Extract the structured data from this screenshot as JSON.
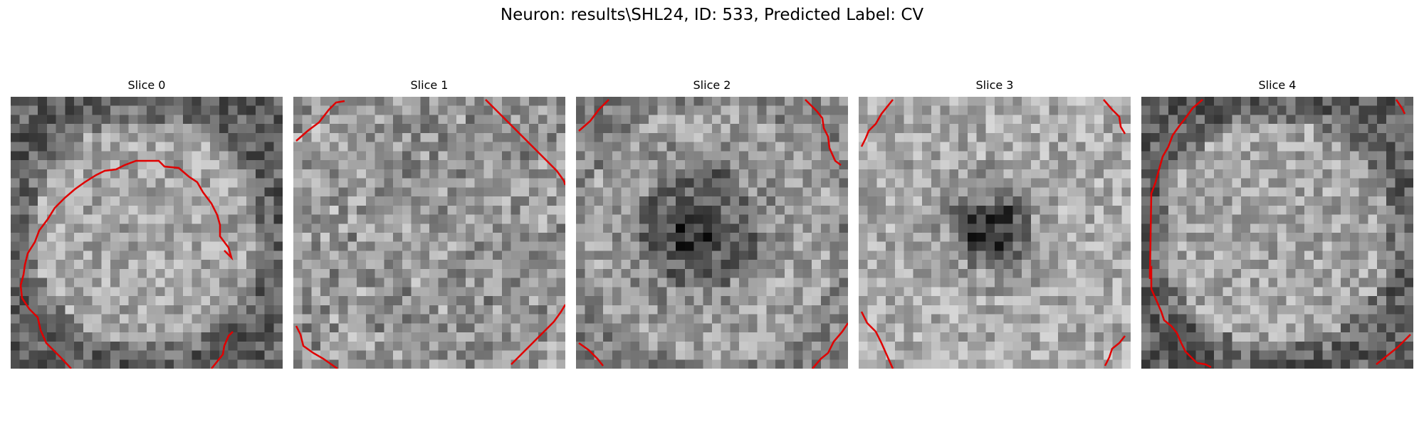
{
  "figure": {
    "title": "Neuron: results\\SHL24, ID: 533, Predicted Label: CV"
  },
  "colors": {
    "contour": "#e00000",
    "background": "#ffffff"
  },
  "slices": [
    {
      "label": "Slice 0",
      "seed": 11,
      "pattern": "ring-dark-edge"
    },
    {
      "label": "Slice 1",
      "seed": 23,
      "pattern": "noise"
    },
    {
      "label": "Slice 2",
      "seed": 37,
      "pattern": "dark-center"
    },
    {
      "label": "Slice 3",
      "seed": 51,
      "pattern": "dark-center-small"
    },
    {
      "label": "Slice 4",
      "seed": 67,
      "pattern": "ring-dark-edge"
    }
  ]
}
